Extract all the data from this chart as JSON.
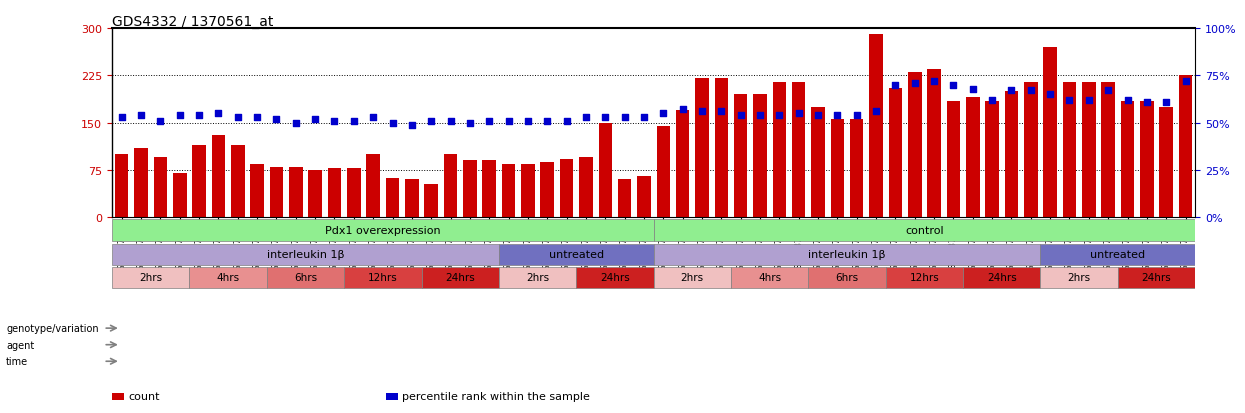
{
  "title": "GDS4332 / 1370561_at",
  "sample_ids": [
    "GSM998740",
    "GSM998753",
    "GSM998766",
    "GSM998774",
    "GSM998729",
    "GSM998754",
    "GSM998767",
    "GSM998775",
    "GSM998741",
    "GSM998755",
    "GSM998768",
    "GSM998776",
    "GSM998730",
    "GSM998742",
    "GSM998747",
    "GSM998777",
    "GSM998731",
    "GSM998748",
    "GSM998756",
    "GSM998769",
    "GSM998732",
    "GSM998749",
    "GSM998757",
    "GSM998778",
    "GSM998733",
    "GSM998758",
    "GSM998770",
    "GSM998779",
    "GSM998734",
    "GSM998743",
    "GSM998759",
    "GSM998780",
    "GSM998735",
    "GSM998750",
    "GSM998760",
    "GSM998782",
    "GSM998744",
    "GSM998751",
    "GSM998761",
    "GSM998771",
    "GSM998736",
    "GSM998745",
    "GSM998762",
    "GSM998781",
    "GSM998737",
    "GSM998752",
    "GSM998763",
    "GSM998772",
    "GSM998738",
    "GSM998764",
    "GSM998773",
    "GSM998783",
    "GSM998739",
    "GSM998746",
    "GSM998765",
    "GSM998784"
  ],
  "red_values": [
    100,
    110,
    95,
    70,
    115,
    130,
    115,
    85,
    80,
    80,
    75,
    78,
    78,
    100,
    62,
    60,
    52,
    100,
    90,
    90,
    85,
    85,
    88,
    92,
    95,
    150,
    60,
    65,
    145,
    170,
    220,
    220,
    195,
    195,
    215,
    215,
    175,
    155,
    155,
    290,
    205,
    230,
    235,
    185,
    190,
    185,
    200,
    215,
    270,
    215,
    215,
    215,
    185,
    185,
    175,
    225
  ],
  "blue_pct": [
    53,
    54,
    51,
    54,
    54,
    55,
    53,
    53,
    52,
    50,
    52,
    51,
    51,
    53,
    50,
    49,
    51,
    51,
    50,
    51,
    51,
    51,
    51,
    51,
    53,
    53,
    53,
    53,
    55,
    57,
    56,
    56,
    54,
    54,
    54,
    55,
    54,
    54,
    54,
    56,
    70,
    71,
    72,
    70,
    68,
    62,
    67,
    67,
    65,
    62,
    62,
    67,
    62,
    61,
    61,
    72
  ],
  "ylim_left": [
    0,
    300
  ],
  "ylim_right": [
    0,
    100
  ],
  "yticks_left": [
    0,
    75,
    150,
    225,
    300
  ],
  "yticks_right": [
    0,
    25,
    50,
    75,
    100
  ],
  "ytick_labels_right": [
    "0%",
    "25%",
    "50%",
    "75%",
    "100%"
  ],
  "hlines": [
    75,
    150,
    225
  ],
  "red_color": "#cc0000",
  "blue_color": "#0000cc",
  "genotype_groups": [
    {
      "label": "Pdx1 overexpression",
      "start": 0,
      "end": 28,
      "color": "#90ee90"
    },
    {
      "label": "control",
      "start": 28,
      "end": 56,
      "color": "#90ee90"
    }
  ],
  "agent_groups": [
    {
      "label": "interleukin 1β",
      "start": 0,
      "end": 20,
      "color": "#b0a0d0"
    },
    {
      "label": "untreated",
      "start": 20,
      "end": 28,
      "color": "#7070c0"
    },
    {
      "label": "interleukin 1β",
      "start": 28,
      "end": 48,
      "color": "#b0a0d0"
    },
    {
      "label": "untreated",
      "start": 48,
      "end": 56,
      "color": "#7070c0"
    }
  ],
  "time_groups": [
    {
      "label": "2hrs",
      "start": 0,
      "end": 4,
      "color": "#f0c0c0"
    },
    {
      "label": "4hrs",
      "start": 4,
      "end": 8,
      "color": "#e89090"
    },
    {
      "label": "6hrs",
      "start": 8,
      "end": 12,
      "color": "#e07070"
    },
    {
      "label": "12hrs",
      "start": 12,
      "end": 16,
      "color": "#d84040"
    },
    {
      "label": "24hrs",
      "start": 16,
      "end": 20,
      "color": "#cc2020"
    },
    {
      "label": "2hrs",
      "start": 20,
      "end": 24,
      "color": "#f0c0c0"
    },
    {
      "label": "24hrs",
      "start": 24,
      "end": 28,
      "color": "#cc2020"
    },
    {
      "label": "2hrs",
      "start": 28,
      "end": 32,
      "color": "#f0c0c0"
    },
    {
      "label": "4hrs",
      "start": 32,
      "end": 36,
      "color": "#e89090"
    },
    {
      "label": "6hrs",
      "start": 36,
      "end": 40,
      "color": "#e07070"
    },
    {
      "label": "12hrs",
      "start": 40,
      "end": 44,
      "color": "#d84040"
    },
    {
      "label": "24hrs",
      "start": 44,
      "end": 48,
      "color": "#cc2020"
    },
    {
      "label": "2hrs",
      "start": 48,
      "end": 52,
      "color": "#f0c0c0"
    },
    {
      "label": "24hrs",
      "start": 52,
      "end": 56,
      "color": "#cc2020"
    }
  ],
  "row_labels": [
    "genotype/variation",
    "agent",
    "time"
  ],
  "legend_items": [
    {
      "label": "count",
      "color": "#cc0000"
    },
    {
      "label": "percentile rank within the sample",
      "color": "#0000cc"
    }
  ],
  "bg_color": "#ffffff",
  "plot_bg_color": "#ffffff"
}
